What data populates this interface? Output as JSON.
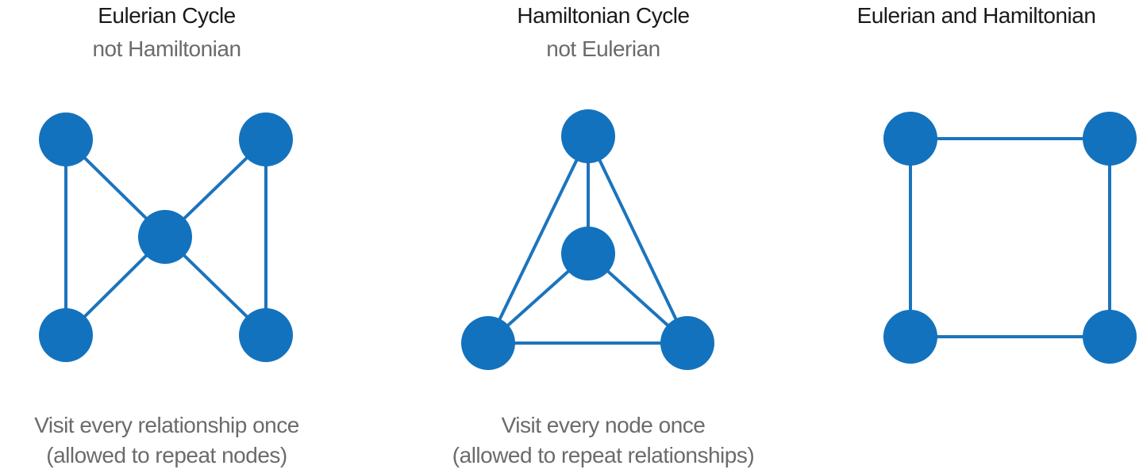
{
  "panels": [
    {
      "title": "Eulerian Cycle",
      "subtitle": "not Hamiltonian",
      "caption": [
        "Visit every relationship once",
        "(allowed to repeat nodes)"
      ]
    },
    {
      "title": "Hamiltonian Cycle",
      "subtitle": "not Eulerian",
      "caption": [
        "Visit every node once",
        "(allowed to repeat relationships)"
      ]
    },
    {
      "title": "Eulerian and Hamiltonian",
      "subtitle": "",
      "caption": []
    }
  ],
  "colors": {
    "node": "#1372bd",
    "edge": "#1b74bd",
    "title": "#1a1a1a",
    "subtitle": "#6b6b6b"
  }
}
